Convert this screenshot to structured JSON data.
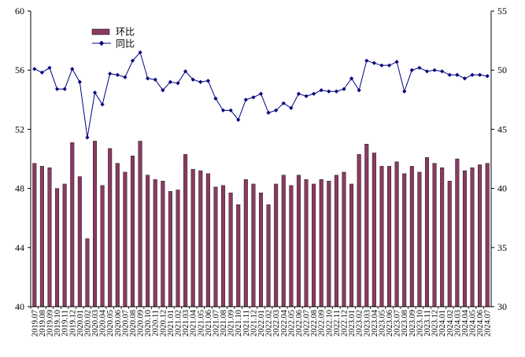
{
  "chart_data": {
    "type": "bar+line",
    "title": "",
    "categories": [
      "2019.07",
      "2019.08",
      "2019.09",
      "2019.10",
      "2019.11",
      "2019.12",
      "2020.01",
      "2020.02",
      "2020.03",
      "2020.04",
      "2020.05",
      "2020.06",
      "2020.07",
      "2020.08",
      "2020.09",
      "2020.10",
      "2020.11",
      "2020.12",
      "2021.01",
      "2021.02",
      "2021.03",
      "2021.04",
      "2021.05",
      "2021.06",
      "2021.07",
      "2021.08",
      "2021.09",
      "2021.10",
      "2021.11",
      "2021.12",
      "2022.01",
      "2022.02",
      "2022.03",
      "2022.04",
      "2022.05",
      "2022.06",
      "2022.07",
      "2022.08",
      "2022.09",
      "2022.10",
      "2022.11",
      "2022.12",
      "2023.01",
      "2023.02",
      "2023.03",
      "2023.04",
      "2023.05",
      "2023.06",
      "2023.07",
      "2023.08",
      "2023.09",
      "2023.10",
      "2023.11",
      "2023.12",
      "2024.01",
      "2024.02",
      "2024.03",
      "2024.04",
      "2024.05",
      "2024.06",
      "2024.07"
    ],
    "x_tick_labels": [
      "2019.07",
      "2019.08",
      "2019.09",
      "2019.10",
      "2019.11",
      "2019.12",
      "2020.01",
      "2020.02",
      "2020.03",
      "2020.04",
      "2020.05",
      "2020.06",
      "2020.07",
      "2020.08",
      "2020.09",
      "2020.10",
      "2020.11",
      "2020.12",
      "2021.01",
      "2021.02",
      "2021.03",
      "2021.04",
      "2021.05",
      "2021.06",
      "2021.07",
      "2021.08",
      "2021.09",
      "2021.10",
      "2021.11",
      "2021.12",
      "2022.01",
      "2022.02",
      "2022.03",
      "2022.04",
      "2022.05",
      "2022.06",
      "2022.07",
      "2022.08",
      "2022.09",
      "2022.10",
      "2022.11",
      "2022.12",
      "2023.01",
      "2023.02",
      "2023.03",
      "2023.04",
      "2023.05",
      "2023.06",
      "2023.07",
      "2023.08",
      "2023.09",
      "2023.10",
      "2023.11",
      "2023.12",
      "2024.01",
      "2024.02",
      "2024.03",
      "2024.04",
      "2024.05",
      "2024.06",
      "2024.07"
    ],
    "series": [
      {
        "name": "环比",
        "type": "bar",
        "axis": "left",
        "color": "#8B3A62",
        "values": [
          49.7,
          49.5,
          49.4,
          48.0,
          48.3,
          51.1,
          48.8,
          44.6,
          51.2,
          48.2,
          50.7,
          49.7,
          49.1,
          50.2,
          51.2,
          48.9,
          48.6,
          48.5,
          47.8,
          47.9,
          50.3,
          49.3,
          49.2,
          49.0,
          48.1,
          48.2,
          47.7,
          46.9,
          48.6,
          48.3,
          47.7,
          46.9,
          48.3,
          48.9,
          48.2,
          48.9,
          48.6,
          48.3,
          48.6,
          48.5,
          48.9,
          49.1,
          48.3,
          50.3,
          51.0,
          50.4,
          49.5,
          49.5,
          49.8,
          49.0,
          49.5,
          49.1,
          50.1,
          49.7,
          49.4,
          48.5,
          50.0,
          49.2,
          49.4,
          49.6,
          49.7
        ]
      },
      {
        "name": "同比",
        "type": "line",
        "axis": "right",
        "color": "#000080",
        "values": [
          50.1,
          49.8,
          50.2,
          48.4,
          48.4,
          50.1,
          49.0,
          44.3,
          48.1,
          47.1,
          49.7,
          49.6,
          49.4,
          50.8,
          51.5,
          49.3,
          49.2,
          48.3,
          49.0,
          48.9,
          49.9,
          49.2,
          49.0,
          49.1,
          47.6,
          46.6,
          46.6,
          45.8,
          47.5,
          47.7,
          48.0,
          46.4,
          46.6,
          47.2,
          46.8,
          48.0,
          47.8,
          48.0,
          48.3,
          48.2,
          48.2,
          48.4,
          49.3,
          48.3,
          50.8,
          50.6,
          50.4,
          50.4,
          50.7,
          48.2,
          50.0,
          50.2,
          49.9,
          50.0,
          49.9,
          49.6,
          49.6,
          49.3,
          49.6,
          49.6,
          49.5
        ]
      }
    ],
    "y_left": {
      "min": 40,
      "max": 60,
      "ticks": [
        40,
        44,
        48,
        52,
        56,
        60
      ]
    },
    "y_right": {
      "min": 30,
      "max": 55,
      "ticks": [
        30,
        35,
        40,
        45,
        50,
        55
      ]
    },
    "legend": {
      "position": "top-left",
      "items": [
        "环比",
        "同比"
      ]
    },
    "grid": false
  }
}
